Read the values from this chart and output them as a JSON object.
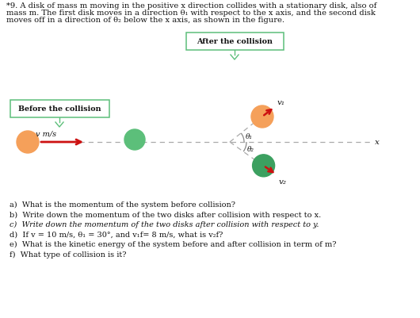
{
  "title_line1": "*9. A disk of mass m moving in the positive x direction collides with a stationary disk, also of",
  "title_line2": "mass m. The first disk moves in a direction θ₁ with respect to the x axis, and the second disk",
  "title_line3": "moves off in a direction of θ₂ below the x axis, as shown in the figure.",
  "label_after": "After the collision",
  "label_before": "Before the collision",
  "label_v": "v m/s",
  "label_v1": "v₁",
  "label_v2": "v₂",
  "label_theta1": "θ₁",
  "label_theta2": "θ₂",
  "label_x": "x",
  "q_a": "a)  What is the momentum of the system before collision?",
  "q_b": "b)  Write down the momentum of the two disks after collision with respect to x.",
  "q_c": "c)  Write down the momentum of the two disks after collision with respect to y.",
  "q_d": "d)  If v = 10 m/s, θ₁ = 30°, and v₁f= 8 m/s, what is v₂f?",
  "q_e": "e)  What is the kinetic energy of the system before and after collision in term of m?",
  "q_f": "f)  What type of collision is it?",
  "bg_color": "#ffffff",
  "orange_color": "#F5A05A",
  "green_light": "#5CBF7A",
  "green_dark": "#3CA060",
  "red_arrow": "#CC1111",
  "dash_color": "#AAAAAA",
  "box_edge": "#5CBF7A",
  "text_color": "#111111",
  "italic_color": "#111111"
}
